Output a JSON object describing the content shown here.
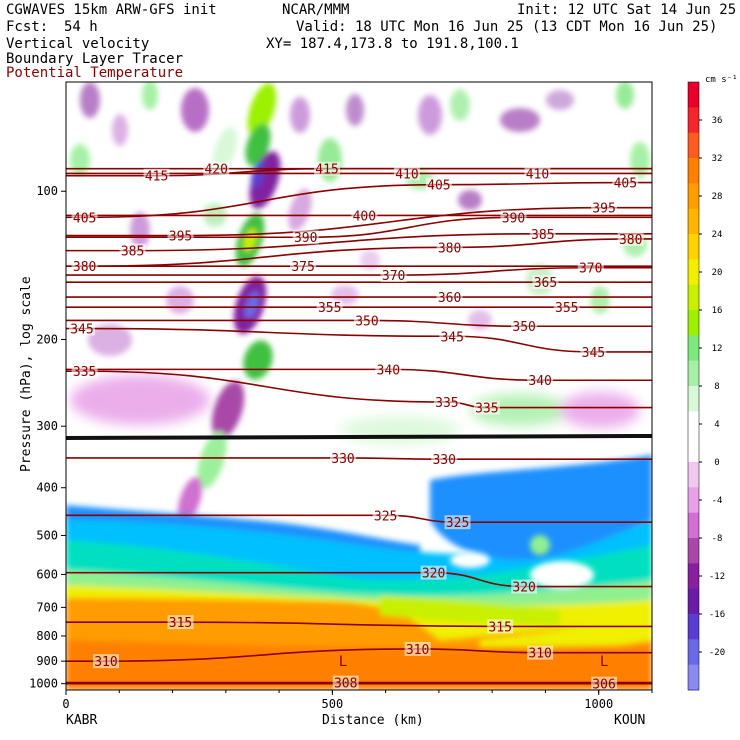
{
  "header": {
    "model_line": "CGWAVES 15km ARW-GFS init",
    "org": "NCAR/MMM",
    "init": "Init: 12 UTC Sat 14 Jun 25",
    "fcst_label": "Fcst:",
    "fcst_value": "54 h",
    "valid": "Valid: 18 UTC Mon 16 Jun 25 (13 CDT Mon 16 Jun 25)",
    "field1": "Vertical velocity",
    "xy": "XY= 187.4,173.8 to 191.8,100.1",
    "field2": "Boundary Layer Tracer",
    "field3": "Potential Temperature"
  },
  "colors": {
    "theta_contour": "#8b0000",
    "background": "#ffffff"
  },
  "chart_data": {
    "type": "heatmap",
    "xlabel": "Distance (km)",
    "ylabel": "Pressure (hPa), log scale",
    "x_ticks": [
      "0",
      "500",
      "1000"
    ],
    "xlim": [
      0,
      1100
    ],
    "y_scale": "log",
    "y_ticks": [
      "100",
      "200",
      "300",
      "400",
      "500",
      "600",
      "700",
      "800",
      "900",
      "1000"
    ],
    "y_tick_values": [
      100,
      200,
      300,
      400,
      500,
      600,
      700,
      800,
      900,
      1000
    ],
    "left_station": "KABR",
    "right_station": "KOUN",
    "colorbar": {
      "unit": "cm s⁻¹",
      "ticks": [
        "36",
        "32",
        "28",
        "24",
        "20",
        "16",
        "12",
        "8",
        "4",
        "0",
        "-4",
        "-8",
        "-12",
        "-16",
        "-20"
      ],
      "tick_values": [
        36,
        32,
        28,
        24,
        20,
        16,
        12,
        8,
        4,
        0,
        -4,
        -8,
        -12,
        -16,
        -20
      ],
      "colors": [
        "#e8002b",
        "#f5262b",
        "#ff5a20",
        "#ff8000",
        "#ff9c00",
        "#ffb500",
        "#ffd300",
        "#f0f000",
        "#c8f000",
        "#9cf000",
        "#7ee87e",
        "#a8eea8",
        "#d8f8d8",
        "#ffffff",
        "#ffffff",
        "#f0c8f0",
        "#e8a0e8",
        "#d070d0",
        "#a848a8",
        "#8820a0",
        "#6a1ca8",
        "#5a3cd0",
        "#6a6ae8",
        "#8a8af0"
      ]
    },
    "theta_labels": [
      {
        "text": "420",
        "x": 282,
        "p": 90
      },
      {
        "text": "415",
        "x": 170,
        "p": 93
      },
      {
        "text": "415",
        "x": 490,
        "p": 90
      },
      {
        "text": "410",
        "x": 640,
        "p": 92
      },
      {
        "text": "410",
        "x": 885,
        "p": 92
      },
      {
        "text": "405",
        "x": 35,
        "p": 113
      },
      {
        "text": "405",
        "x": 700,
        "p": 97
      },
      {
        "text": "405",
        "x": 1050,
        "p": 96
      },
      {
        "text": "400",
        "x": 560,
        "p": 112
      },
      {
        "text": "395",
        "x": 215,
        "p": 123
      },
      {
        "text": "395",
        "x": 1010,
        "p": 108
      },
      {
        "text": "390",
        "x": 450,
        "p": 124
      },
      {
        "text": "390",
        "x": 840,
        "p": 113
      },
      {
        "text": "385",
        "x": 125,
        "p": 132
      },
      {
        "text": "385",
        "x": 895,
        "p": 122
      },
      {
        "text": "380",
        "x": 35,
        "p": 142
      },
      {
        "text": "380",
        "x": 720,
        "p": 130
      },
      {
        "text": "380",
        "x": 1060,
        "p": 125
      },
      {
        "text": "375",
        "x": 445,
        "p": 142
      },
      {
        "text": "370",
        "x": 615,
        "p": 148
      },
      {
        "text": "370",
        "x": 985,
        "p": 143
      },
      {
        "text": "365",
        "x": 900,
        "p": 153
      },
      {
        "text": "360",
        "x": 720,
        "p": 164
      },
      {
        "text": "355",
        "x": 495,
        "p": 172
      },
      {
        "text": "355",
        "x": 940,
        "p": 172
      },
      {
        "text": "350",
        "x": 565,
        "p": 183
      },
      {
        "text": "350",
        "x": 860,
        "p": 188
      },
      {
        "text": "345",
        "x": 30,
        "p": 190
      },
      {
        "text": "345",
        "x": 725,
        "p": 197
      },
      {
        "text": "345",
        "x": 990,
        "p": 212
      },
      {
        "text": "340",
        "x": 605,
        "p": 230
      },
      {
        "text": "340",
        "x": 890,
        "p": 242
      },
      {
        "text": "335",
        "x": 35,
        "p": 232
      },
      {
        "text": "335",
        "x": 715,
        "p": 268
      },
      {
        "text": "335",
        "x": 790,
        "p": 275
      },
      {
        "text": "330",
        "x": 520,
        "p": 348
      },
      {
        "text": "330",
        "x": 710,
        "p": 350
      },
      {
        "text": "325",
        "x": 600,
        "p": 455
      },
      {
        "text": "325",
        "x": 735,
        "p": 470
      },
      {
        "text": "320",
        "x": 690,
        "p": 595
      },
      {
        "text": "320",
        "x": 860,
        "p": 635
      },
      {
        "text": "315",
        "x": 215,
        "p": 750
      },
      {
        "text": "315",
        "x": 815,
        "p": 765
      },
      {
        "text": "310",
        "x": 75,
        "p": 900
      },
      {
        "text": "310",
        "x": 660,
        "p": 850
      },
      {
        "text": "310",
        "x": 890,
        "p": 865
      },
      {
        "text": "308",
        "x": 525,
        "p": 995
      },
      {
        "text": "306",
        "x": 1010,
        "p": 1000
      }
    ],
    "markers": [
      {
        "text": "L",
        "x": 520,
        "p": 900
      },
      {
        "text": "L",
        "x": 1010,
        "p": 900
      }
    ]
  }
}
